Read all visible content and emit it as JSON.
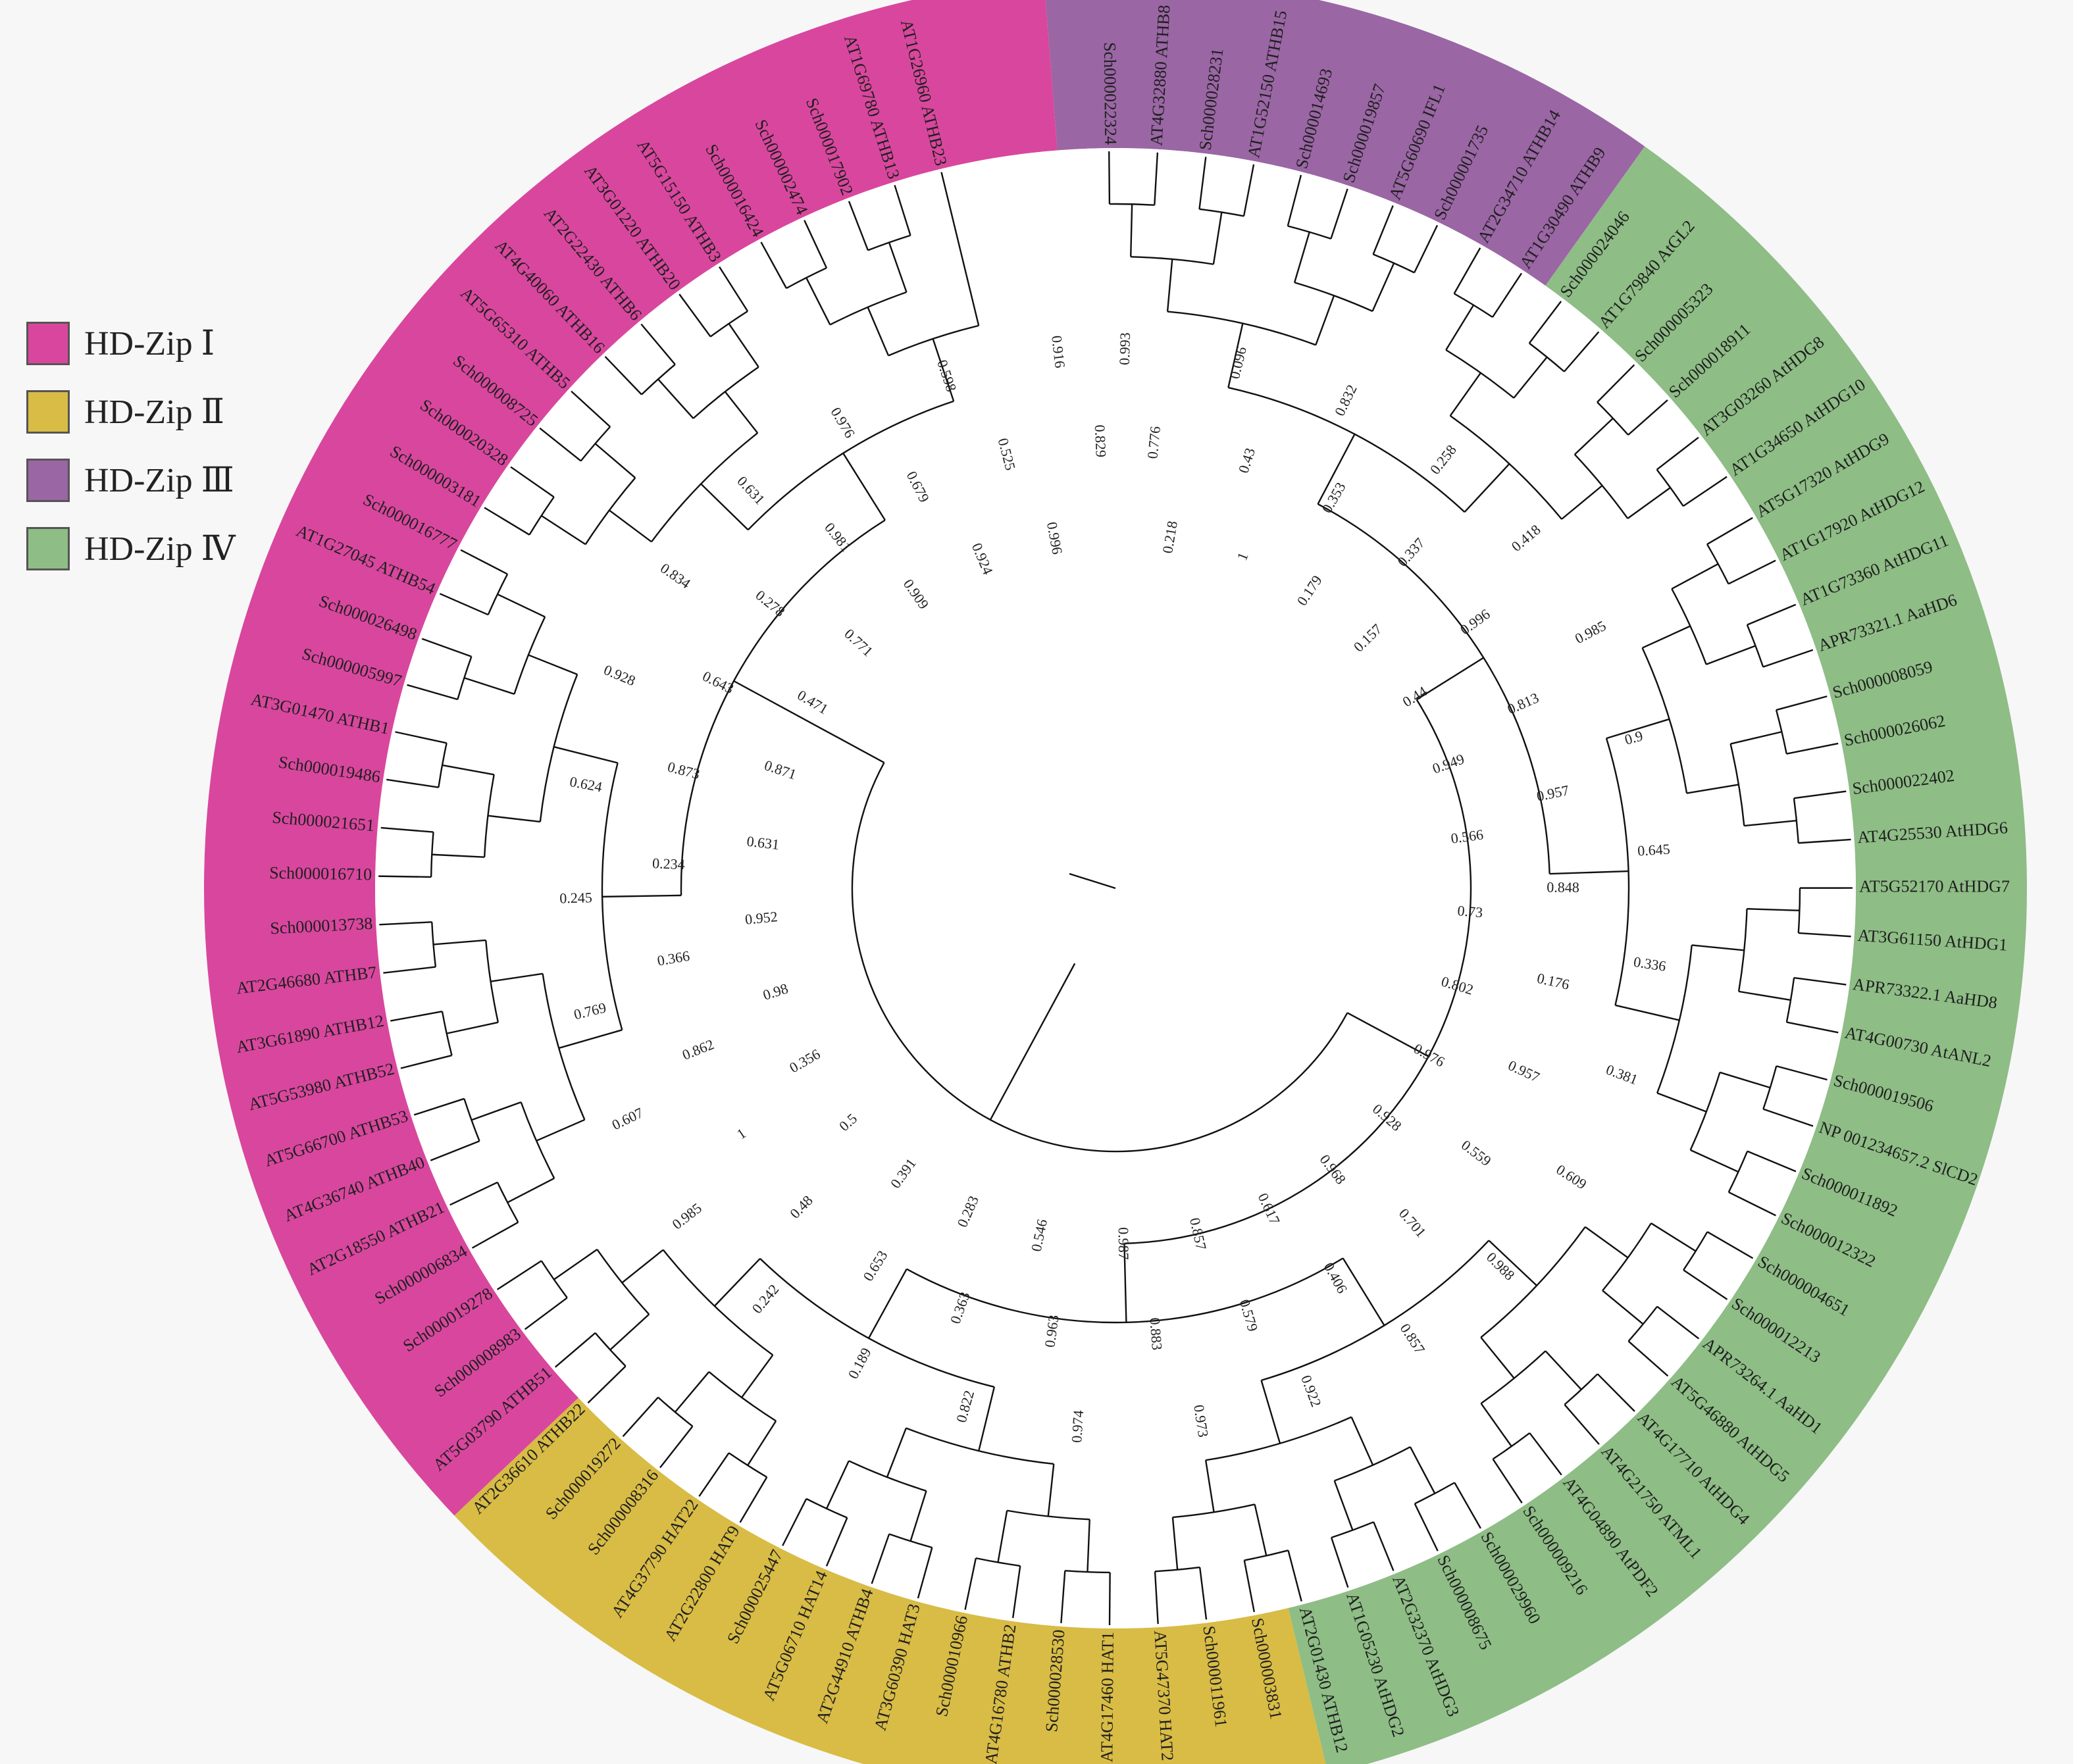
{
  "legend": [
    {
      "label": "HD-Zip Ⅰ",
      "color": "#d8479d"
    },
    {
      "label": "HD-Zip Ⅱ",
      "color": "#d8bc45"
    },
    {
      "label": "HD-Zip Ⅲ",
      "color": "#9a66a4"
    },
    {
      "label": "HD-Zip Ⅳ",
      "color": "#8ebd86"
    }
  ],
  "tips": [
    "Sch000022324",
    "AT4G32880 ATHB8",
    "Sch000028231",
    "AT1G52150 ATHB15",
    "Sch000014693",
    "Sch000019857",
    "AT5G60690 IFL1",
    "Sch000001735",
    "AT2G34710 ATHB14",
    "AT1G30490 ATHB9",
    "Sch000024046",
    "AT1G79840 AtGL2",
    "Sch000005323",
    "Sch000018911",
    "AT3G03260 AtHDG8",
    "AT1G34650 AtHDG10",
    "AT5G17320 AtHDG9",
    "AT1G17920 AtHDG12",
    "AT1G73360 AtHDG11",
    "APR73321.1 AaHD6",
    "Sch000008059",
    "Sch000026062",
    "Sch000022402",
    "AT4G25530 AtHDG6",
    "AT5G52170 AtHDG7",
    "AT3G61150 AtHDG1",
    "APR73322.1 AaHD8",
    "AT4G00730 AtANL2",
    "Sch000019506",
    "NP 001234657.2 SlCD2",
    "Sch000011892",
    "Sch000012322",
    "Sch000004651",
    "Sch000012213",
    "APR73264.1 AaHD1",
    "AT5G46880 AtHDG5",
    "AT4G17710 AtHDG4",
    "AT4G21750 ATML1",
    "AT4G04890 AtPDF2",
    "Sch000009216",
    "Sch000029960",
    "Sch000008675",
    "AT2G32370 AtHDG3",
    "AT1G05230 AtHDG2",
    "AT2G01430 ATHB12",
    "Sch000003831",
    "Sch000011961",
    "AT5G47370 HAT2",
    "AT4G17460 HAT1",
    "Sch000028530",
    "AT4G16780 ATHB2",
    "Sch000010966",
    "AT3G60390 HAT3",
    "AT2G44910 ATHB4",
    "AT5G06710 HAT14",
    "Sch000025447",
    "AT2G22800 HAT9",
    "AT4G37790 HAT22",
    "Sch000008316",
    "Sch000019272",
    "AT2G36610 ATHB22",
    "AT5G03790 ATHB51",
    "Sch000008983",
    "Sch000019278",
    "Sch000006834",
    "AT2G18550 ATHB21",
    "AT4G36740 ATHB40",
    "AT5G66700 ATHB53",
    "AT5G53980 ATHB52",
    "AT3G61890 ATHB12",
    "AT2G46680 ATHB7",
    "Sch000013738",
    "Sch000016710",
    "Sch000021651",
    "Sch000019486",
    "AT3G01470 ATHB1",
    "Sch000005997",
    "Sch000026498",
    "AT1G27045 ATHB54",
    "Sch000016777",
    "Sch000003181",
    "Sch000020328",
    "Sch000008725",
    "AT5G65310 ATHB5",
    "AT4G40060 ATHB16",
    "AT2G22430 ATHB6",
    "AT3G01220 ATHB20",
    "AT5G15150 ATHB3",
    "Sch000016424",
    "Sch000002474",
    "Sch000017902",
    "AT1G69780 ATHB13",
    "AT1G26960 ATHB23"
  ],
  "bootstrap": [
    "0.993",
    "0.776",
    "0.218",
    "0.096",
    "0.43",
    "1",
    "0.832",
    "0.353",
    "0.179",
    "0.258",
    "0.337",
    "0.157",
    "0.418",
    "0.996",
    "0.44",
    "0.985",
    "0.813",
    "0.949",
    "0.9",
    "0.957",
    "0.566",
    "0.645",
    "0.848",
    "0.73",
    "0.336",
    "0.176",
    "0.802",
    "0.381",
    "0.957",
    "0.976",
    "0.609",
    "0.559",
    "0.928",
    "0.988",
    "0.701",
    "0.968",
    "0.857",
    "0.406",
    "0.617",
    "0.922",
    "0.579",
    "0.857",
    "0.973",
    "0.883",
    "0.987",
    "0.974",
    "0.963",
    "0.546",
    "0.822",
    "0.363",
    "0.283",
    "0.189",
    "0.653",
    "0.391",
    "0.242",
    "0.48",
    "0.5",
    "0.985",
    "1",
    "0.356",
    "0.607",
    "0.862",
    "0.98",
    "0.769",
    "0.366",
    "0.952",
    "0.245",
    "0.234",
    "0.631",
    "0.624",
    "0.873",
    "0.871",
    "0.928",
    "0.643",
    "0.471",
    "0.834",
    "0.278",
    "0.771",
    "0.631",
    "0.981",
    "0.909",
    "0.976",
    "0.679",
    "0.924",
    "0.598",
    "0.525",
    "0.996",
    "0.916",
    "0.829"
  ],
  "tree_marker": "1"
}
